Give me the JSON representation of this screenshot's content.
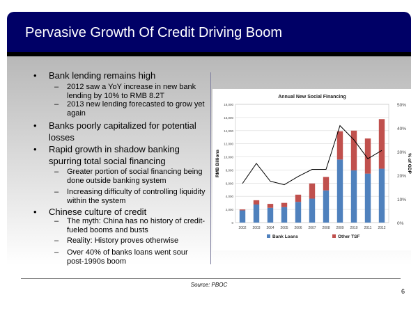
{
  "slide": {
    "title": "Pervasive Growth Of Credit Driving Boom",
    "source": "Source: PBOC",
    "page_number": "6",
    "bullet_marker": "•",
    "dash_marker": "–",
    "bullets": [
      {
        "text": "Bank lending remains high",
        "subs": [
          "2012 saw a YoY increase in new bank lending by 10% to RMB 8.2T",
          "2013 new lending forecasted to grow yet again"
        ]
      },
      {
        "text": "Banks poorly capitalized for potential losses",
        "subs": []
      },
      {
        "text": "Rapid growth in shadow banking spurring total social financing",
        "subs": [
          "Greater portion of social financing being done outside banking system",
          "Increasing difficulty of controlling liquidity within the system"
        ]
      },
      {
        "text": "Chinese culture of credit",
        "subs": [
          "The myth: China has no history of credit-fueled booms and busts",
          "Reality: History proves otherwise",
          "Over 40% of banks loans went sour post-1990s boom"
        ]
      }
    ]
  },
  "chart_data": {
    "type": "bar",
    "stacked": true,
    "title": "Annual New Social Financing",
    "ylabel": "RMB Billions",
    "y2label": "% of GDP",
    "ylim": [
      0,
      18000
    ],
    "y2lim": [
      0,
      50
    ],
    "yticks": [
      "0",
      "2,000",
      "4,000",
      "6,000",
      "8,000",
      "10,000",
      "12,000",
      "14,000",
      "16,000",
      "18,000"
    ],
    "y2ticks": [
      "0%",
      "10%",
      "20%",
      "30%",
      "40%",
      "50%"
    ],
    "categories": [
      "2002",
      "2003",
      "2004",
      "2005",
      "2006",
      "2007",
      "2008",
      "2009",
      "2010",
      "2011",
      "2012"
    ],
    "series": [
      {
        "name": "Bank Loans",
        "color": "#4f81bd",
        "values": [
          1850,
          2750,
          2250,
          2350,
          3150,
          3650,
          4900,
          9600,
          7950,
          7450,
          8200
        ]
      },
      {
        "name": "Other TSF",
        "color": "#c0504d",
        "values": [
          150,
          650,
          600,
          650,
          1100,
          2300,
          2050,
          4300,
          6050,
          5350,
          7550
        ]
      },
      {
        "name": "% of GDP",
        "type": "line",
        "axis": "right",
        "color": "#000000",
        "values": [
          16.5,
          25,
          17.5,
          16,
          19.5,
          22.5,
          22.5,
          41,
          35,
          27,
          30.5
        ]
      }
    ],
    "legend": "bottom",
    "grid": true
  }
}
